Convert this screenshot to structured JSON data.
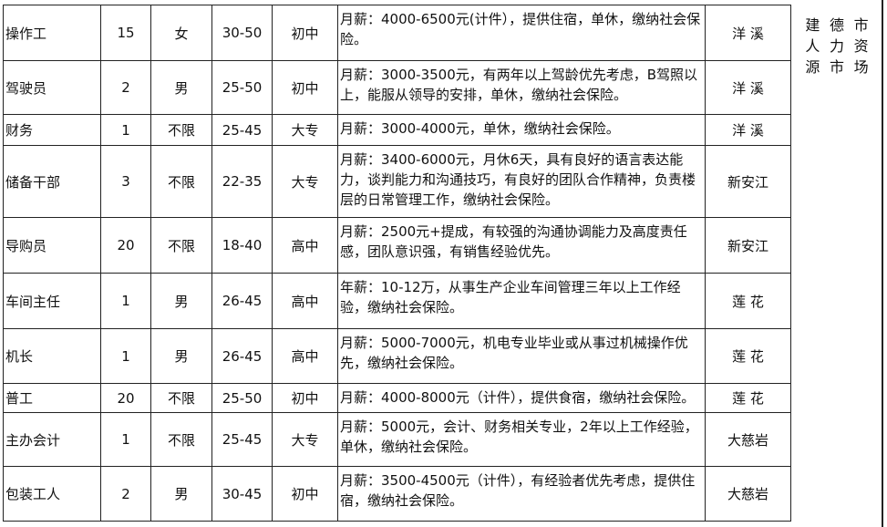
{
  "rows": [
    {
      "job": "操作工",
      "count": "15",
      "gender": "女",
      "age": "30-50",
      "edu": "初中",
      "desc": "月薪：4000-6500元(计件），提供住宿，单休，缴纳社会保险。",
      "place": "洋 溪"
    },
    {
      "job": "驾驶员",
      "count": "2",
      "gender": "男",
      "age": "25-50",
      "edu": "初中",
      "desc": "月薪：3000-3500元，有两年以上驾龄优先考虑，B驾照以上，能服从领导的安排，单休，缴纳社会保险。",
      "place": "洋 溪"
    },
    {
      "job": "财务",
      "count": "1",
      "gender": "不限",
      "age": "25-45",
      "edu": "大专",
      "desc": "月薪：3000-4000元，单休，缴纳社会保险。",
      "place": "洋 溪"
    },
    {
      "job": "储备干部",
      "count": "3",
      "gender": "不限",
      "age": "22-35",
      "edu": "大专",
      "desc": "月薪：3400-6000元，月休6天，具有良好的语言表达能力，谈判能力和沟通技巧，有良好的团队合作精神，负责楼层的日常管理工作，缴纳社会保险。",
      "place": "新安江"
    },
    {
      "job": "导购员",
      "count": "20",
      "gender": "不限",
      "age": "18-40",
      "edu": "高中",
      "desc": "月薪：2500元+提成，有较强的沟通协调能力及高度责任感，团队意识强，有销售经验优先。",
      "place": "新安江"
    },
    {
      "job": "车间主任",
      "count": "1",
      "gender": "男",
      "age": "26-45",
      "edu": "高中",
      "desc": "年薪：10-12万，从事生产企业车间管理三年以上工作经验，缴纳社会保险。",
      "place": "莲 花"
    },
    {
      "job": "机长",
      "count": "1",
      "gender": "男",
      "age": "26-45",
      "edu": "高中",
      "desc": "月薪：5000-7000元，机电专业毕业或从事过机械操作优先，缴纳社会保险。",
      "place": "莲 花"
    },
    {
      "job": "普工",
      "count": "20",
      "gender": "不限",
      "age": "25-50",
      "edu": "初中",
      "desc": "月薪：4000-8000元（计件），提供食宿，缴纳社会保险。",
      "place": "莲 花"
    },
    {
      "job": "主办会计",
      "count": "1",
      "gender": "不限",
      "age": "25-45",
      "edu": "大专",
      "desc": "月薪：5000元，会计、财务相关专业，2年以上工作经验，单休，缴纳社会保险。",
      "place": "大慈岩"
    },
    {
      "job": "包装工人",
      "count": "2",
      "gender": "男",
      "age": "30-45",
      "edu": "初中",
      "desc": "月薪：3500-4500元（计件），有经验者优先考虑，提供住宿，缴纳社会保险。",
      "place": "大慈岩"
    }
  ],
  "side_label": [
    "建",
    "德",
    "市",
    "人",
    "力",
    "资",
    "源",
    "市",
    "场"
  ]
}
